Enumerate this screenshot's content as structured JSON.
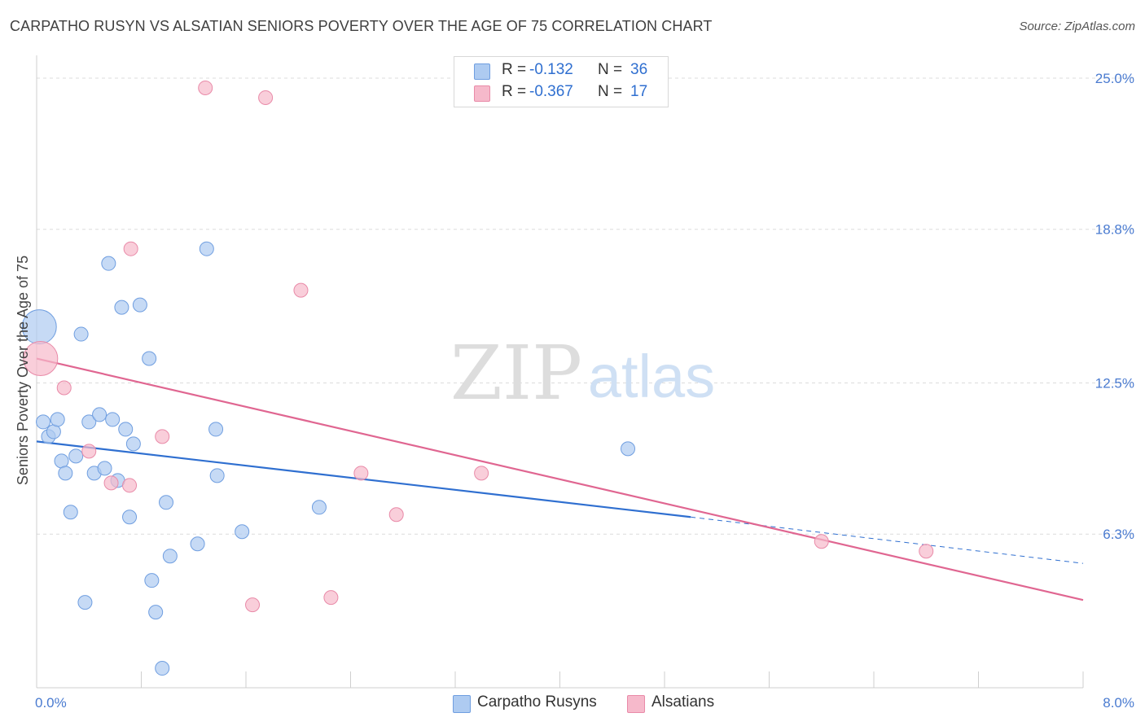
{
  "title": "CARPATHO RUSYN VS ALSATIAN SENIORS POVERTY OVER THE AGE OF 75 CORRELATION CHART",
  "source": "Source: ZipAtlas.com",
  "watermark": {
    "zip": "ZIP",
    "atlas": "atlas"
  },
  "legend": {
    "rows": [
      {
        "r_label": "R =",
        "r_value": "-0.132",
        "n_label": "N =",
        "n_value": "36",
        "color": "#aecbf1"
      },
      {
        "r_label": "R =",
        "r_value": "-0.367",
        "n_label": "N =",
        "n_value": "17",
        "color": "#f6b9cb"
      }
    ]
  },
  "bottom_legend": [
    {
      "label": "Carpatho Rusyns",
      "color": "#aecbf1"
    },
    {
      "label": "Alsatians",
      "color": "#f6b9cb"
    }
  ],
  "chart_data": {
    "type": "scatter",
    "title": "CARPATHO RUSYN VS ALSATIAN SENIORS POVERTY OVER THE AGE OF 75 CORRELATION CHART",
    "xlabel": "",
    "ylabel": "Seniors Poverty Over the Age of 75",
    "xlim": [
      0,
      8
    ],
    "ylim": [
      0,
      25.8
    ],
    "x_tick_labels": [
      {
        "value": 0,
        "label": "0.0%"
      },
      {
        "value": 8,
        "label": "8.0%"
      }
    ],
    "y_ticks": [
      {
        "value": 25.0,
        "label": "25.0%"
      },
      {
        "value": 18.8,
        "label": "18.8%"
      },
      {
        "value": 12.5,
        "label": "12.5%"
      },
      {
        "value": 6.3,
        "label": "6.3%"
      }
    ],
    "x_minor_ticks": [
      0.8,
      1.6,
      2.4,
      3.2,
      4.0,
      4.8,
      5.6,
      6.4,
      7.2,
      8.0
    ],
    "grid": true,
    "series": [
      {
        "name": "Carpatho Rusyns",
        "color": "#aecbf1",
        "stroke": "#6f9ee0",
        "line_color": "#2f6fd0",
        "trend": {
          "x": [
            0,
            5.0
          ],
          "y": [
            10.1,
            7.0
          ],
          "dashed_to": [
            8.0,
            5.1
          ]
        },
        "points": [
          {
            "x": 0.02,
            "y": 14.8,
            "big": true
          },
          {
            "x": 0.05,
            "y": 10.9
          },
          {
            "x": 0.09,
            "y": 10.3
          },
          {
            "x": 0.13,
            "y": 10.5
          },
          {
            "x": 0.16,
            "y": 11.0
          },
          {
            "x": 0.19,
            "y": 9.3
          },
          {
            "x": 0.22,
            "y": 8.8
          },
          {
            "x": 0.26,
            "y": 7.2
          },
          {
            "x": 0.3,
            "y": 9.5
          },
          {
            "x": 0.34,
            "y": 14.5
          },
          {
            "x": 0.37,
            "y": 3.5
          },
          {
            "x": 0.4,
            "y": 10.9
          },
          {
            "x": 0.44,
            "y": 8.8
          },
          {
            "x": 0.48,
            "y": 11.2
          },
          {
            "x": 0.52,
            "y": 9.0
          },
          {
            "x": 0.55,
            "y": 17.4
          },
          {
            "x": 0.58,
            "y": 11.0
          },
          {
            "x": 0.62,
            "y": 8.5
          },
          {
            "x": 0.65,
            "y": 15.6
          },
          {
            "x": 0.68,
            "y": 10.6
          },
          {
            "x": 0.71,
            "y": 7.0
          },
          {
            "x": 0.74,
            "y": 10.0
          },
          {
            "x": 0.79,
            "y": 15.7
          },
          {
            "x": 0.86,
            "y": 13.5
          },
          {
            "x": 0.88,
            "y": 4.4
          },
          {
            "x": 0.91,
            "y": 3.1
          },
          {
            "x": 0.96,
            "y": 0.8
          },
          {
            "x": 0.99,
            "y": 7.6
          },
          {
            "x": 1.02,
            "y": 5.4
          },
          {
            "x": 1.23,
            "y": 5.9
          },
          {
            "x": 1.3,
            "y": 18.0
          },
          {
            "x": 1.37,
            "y": 10.6
          },
          {
            "x": 1.38,
            "y": 8.7
          },
          {
            "x": 1.57,
            "y": 6.4
          },
          {
            "x": 2.16,
            "y": 7.4
          },
          {
            "x": 4.52,
            "y": 9.8
          }
        ]
      },
      {
        "name": "Alsatians",
        "color": "#f6b9cb",
        "stroke": "#e98aa8",
        "line_color": "#e06691",
        "trend": {
          "x": [
            0,
            8.0
          ],
          "y": [
            13.5,
            3.6
          ]
        },
        "points": [
          {
            "x": 0.03,
            "y": 13.5,
            "big": true
          },
          {
            "x": 0.21,
            "y": 12.3
          },
          {
            "x": 0.4,
            "y": 9.7
          },
          {
            "x": 0.57,
            "y": 8.4
          },
          {
            "x": 0.71,
            "y": 8.3
          },
          {
            "x": 0.72,
            "y": 18.0
          },
          {
            "x": 0.96,
            "y": 10.3
          },
          {
            "x": 1.29,
            "y": 24.6
          },
          {
            "x": 1.65,
            "y": 3.4
          },
          {
            "x": 1.75,
            "y": 24.2
          },
          {
            "x": 2.02,
            "y": 16.3
          },
          {
            "x": 2.25,
            "y": 3.7
          },
          {
            "x": 2.48,
            "y": 8.8
          },
          {
            "x": 2.75,
            "y": 7.1
          },
          {
            "x": 3.4,
            "y": 8.8
          },
          {
            "x": 6.0,
            "y": 6.0
          },
          {
            "x": 6.8,
            "y": 5.6
          }
        ]
      }
    ]
  }
}
